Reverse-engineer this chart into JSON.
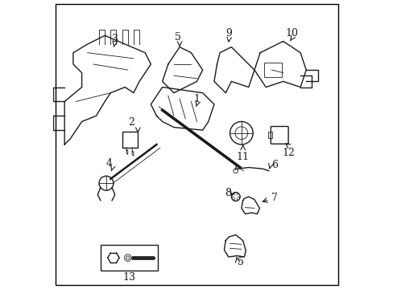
{
  "title": "",
  "background_color": "#ffffff",
  "figure_width": 4.89,
  "figure_height": 3.6,
  "dpi": 100,
  "line_color": "#1a1a1a",
  "text_color": "#1a1a1a",
  "font_size": 9,
  "border_color": "#000000"
}
